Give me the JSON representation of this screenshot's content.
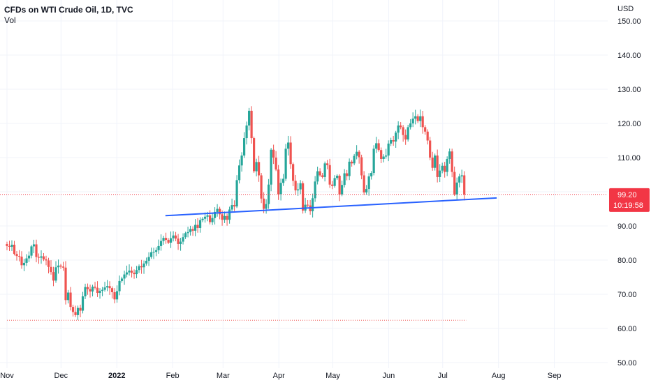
{
  "header": {
    "title": "CFDs on WTI Crude Oil, 1D, TVC",
    "indicator": "Vol"
  },
  "chart_data": {
    "type": "candlestick",
    "currency": "USD",
    "ylim": [
      48,
      155
    ],
    "y_ticks": [
      "150.00",
      "140.00",
      "130.00",
      "120.00",
      "110.00",
      "100.00",
      "90.00",
      "80.00",
      "70.00",
      "60.00",
      "50.00"
    ],
    "x_ticks": [
      "Nov",
      "Dec",
      "2022",
      "Feb",
      "Mar",
      "Apr",
      "May",
      "Jun",
      "Jul",
      "Aug",
      "Sep"
    ],
    "x_range": [
      "2021-11-01",
      "2022-09-26"
    ],
    "last_price": {
      "value": 99.2,
      "label": "99.20",
      "countdown": "10:19:58"
    },
    "support_line": {
      "start": [
        "2022-01-28",
        93.0
      ],
      "end": [
        "2022-07-31",
        98.2
      ]
    },
    "low_line": {
      "value": 62.4,
      "start": "2021-11-01",
      "end": "2022-07-14"
    },
    "colors": {
      "up": "#26a69a",
      "down": "#ef5350",
      "trendline": "#2962ff",
      "price_label": "#f23645"
    },
    "candles_note_close_sequence": "daily closes",
    "closes": [
      84.1,
      83.9,
      84.5,
      81.8,
      81.2,
      81.0,
      78.5,
      79.2,
      80.5,
      81.3,
      84.0,
      84.6,
      80.9,
      80.7,
      81.1,
      80.2,
      79.9,
      78.0,
      76.5,
      74.0,
      77.9,
      78.4,
      78.1,
      77.8,
      68.3,
      70.5,
      66.3,
      64.8,
      63.9,
      66.0,
      65.2,
      69.4,
      72.1,
      71.5,
      70.8,
      72.2,
      71.9,
      70.4,
      71.0,
      71.3,
      72.0,
      72.4,
      71.8,
      70.6,
      68.5,
      70.9,
      73.9,
      74.6,
      75.8,
      76.4,
      76.9,
      76.3,
      75.9,
      77.1,
      78.2,
      77.9,
      79.0,
      79.8,
      80.9,
      82.3,
      82.4,
      82.9,
      84.1,
      85.6,
      86.5,
      85.9,
      85.1,
      86.4,
      87.2,
      86.3,
      84.7,
      85.4,
      86.7,
      87.9,
      88.2,
      89.1,
      88.6,
      90.3,
      89.4,
      91.7,
      92.1,
      92.7,
      93.1,
      91.1,
      92.3,
      94.1,
      95.0,
      93.4,
      91.8,
      92.9,
      91.8,
      94.8,
      96.1,
      95.7,
      103.4,
      107.7,
      110.6,
      115.7,
      119.4,
      123.7,
      115.7,
      106.0,
      108.7,
      104.8,
      98.0,
      95.0,
      96.4,
      102.1,
      112.3,
      110.0,
      106.5,
      99.3,
      102.6,
      103.8,
      112.6,
      114.4,
      108.1,
      103.2,
      100.4,
      100.7,
      102.5,
      94.5,
      96.2,
      96.0,
      94.3,
      98.1,
      103.0,
      106.0,
      104.8,
      104.3,
      108.3,
      107.8,
      102.1,
      101.7,
      104.0,
      104.7,
      99.2,
      102.0,
      105.4,
      104.6,
      108.8,
      108.3,
      110.5,
      111.7,
      110.1,
      104.8,
      99.8,
      100.8,
      104.5,
      105.5,
      112.6,
      114.2,
      112.2,
      109.6,
      110.3,
      110.6,
      114.1,
      115.1,
      114.7,
      117.3,
      119.4,
      118.9,
      116.6,
      115.3,
      118.9,
      120.0,
      121.4,
      122.1,
      120.7,
      122.1,
      118.9,
      117.6,
      115.0,
      110.0,
      107.0,
      110.6,
      104.3,
      106.2,
      107.6,
      105.8,
      109.6,
      111.8,
      105.8,
      99.2,
      102.7,
      104.5,
      104.8,
      99.2
    ]
  }
}
